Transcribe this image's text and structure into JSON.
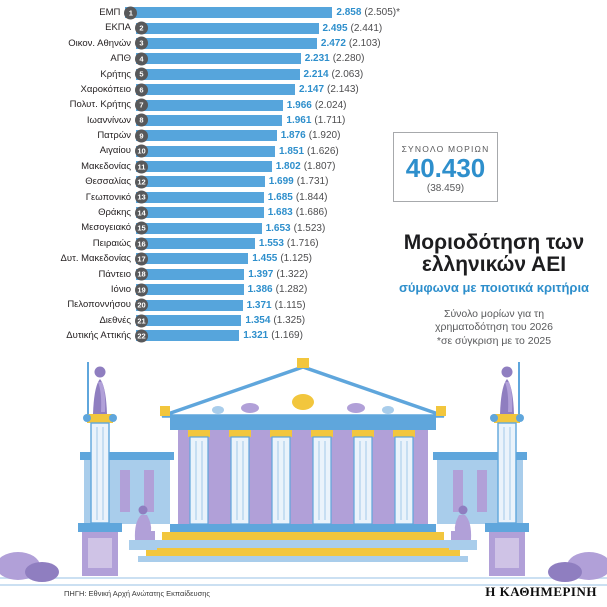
{
  "chart_data": {
    "type": "bar",
    "orientation": "horizontal",
    "title": "Μοριοδότηση των ελληνικών ΑΕΙ",
    "subtitle": "σύμφωνα με ποιοτικά κριτήρια",
    "note1": "Σύνολο μορίων για τη χρηματοδότηση του 2026",
    "note2": "*σε σύγκριση με το 2025",
    "max_value": 2858,
    "legend_position": "none",
    "grid": false,
    "total_box": {
      "title": "ΣΥΝΟΛΟ ΜΟΡΙΩΝ",
      "value": "40.430",
      "prev": "(38.459)"
    },
    "rows": [
      {
        "rank": 1,
        "label": "ΕΜΠ",
        "value": 2858,
        "value_label": "2.858",
        "prev_label": "(2.505)*"
      },
      {
        "rank": 2,
        "label": "ΕΚΠΑ",
        "value": 2495,
        "value_label": "2.495",
        "prev_label": "(2.441)"
      },
      {
        "rank": 3,
        "label": "Οικον. Αθηνών",
        "value": 2472,
        "value_label": "2.472",
        "prev_label": "(2.103)"
      },
      {
        "rank": 4,
        "label": "ΑΠΘ",
        "value": 2231,
        "value_label": "2.231",
        "prev_label": "(2.280)"
      },
      {
        "rank": 5,
        "label": "Κρήτης",
        "value": 2214,
        "value_label": "2.214",
        "prev_label": "(2.063)"
      },
      {
        "rank": 6,
        "label": "Χαροκόπειο",
        "value": 2147,
        "value_label": "2.147",
        "prev_label": "(2.143)"
      },
      {
        "rank": 7,
        "label": "Πολυτ. Κρήτης",
        "value": 1966,
        "value_label": "1.966",
        "prev_label": "(2.024)"
      },
      {
        "rank": 8,
        "label": "Ιωαννίνων",
        "value": 1961,
        "value_label": "1.961",
        "prev_label": "(1.711)"
      },
      {
        "rank": 9,
        "label": "Πατρών",
        "value": 1876,
        "value_label": "1.876",
        "prev_label": "(1.920)"
      },
      {
        "rank": 10,
        "label": "Αιγαίου",
        "value": 1851,
        "value_label": "1.851",
        "prev_label": "(1.626)"
      },
      {
        "rank": 11,
        "label": "Μακεδονίας",
        "value": 1802,
        "value_label": "1.802",
        "prev_label": "(1.807)"
      },
      {
        "rank": 12,
        "label": "Θεσσαλίας",
        "value": 1699,
        "value_label": "1.699",
        "prev_label": "(1.731)"
      },
      {
        "rank": 13,
        "label": "Γεωπονικό",
        "value": 1685,
        "value_label": "1.685",
        "prev_label": "(1.844)"
      },
      {
        "rank": 14,
        "label": "Θράκης",
        "value": 1683,
        "value_label": "1.683",
        "prev_label": "(1.686)"
      },
      {
        "rank": 15,
        "label": "Μεσογειακό",
        "value": 1653,
        "value_label": "1.653",
        "prev_label": "(1.523)"
      },
      {
        "rank": 16,
        "label": "Πειραιώς",
        "value": 1553,
        "value_label": "1.553",
        "prev_label": "(1.716)"
      },
      {
        "rank": 17,
        "label": "Δυτ. Μακεδονίας",
        "value": 1455,
        "value_label": "1.455",
        "prev_label": "(1.125)"
      },
      {
        "rank": 18,
        "label": "Πάντειο",
        "value": 1397,
        "value_label": "1.397",
        "prev_label": "(1.322)"
      },
      {
        "rank": 19,
        "label": "Ιόνιο",
        "value": 1386,
        "value_label": "1.386",
        "prev_label": "(1.282)"
      },
      {
        "rank": 20,
        "label": "Πελοποννήσου",
        "value": 1371,
        "value_label": "1.371",
        "prev_label": "(1.115)"
      },
      {
        "rank": 21,
        "label": "Διεθνές",
        "value": 1354,
        "value_label": "1.354",
        "prev_label": "(1.325)"
      },
      {
        "rank": 22,
        "label": "Δυτικής Αττικής",
        "value": 1321,
        "value_label": "1.321",
        "prev_label": "(1.169)"
      }
    ]
  },
  "illustration": "academy-of-athens-building",
  "source": "ΠΗΓΗ: Εθνική Αρχή Ανώτατης Εκπαίδευσης",
  "brand": "Η ΚΑΘΗΜΕΡΙΝΗ",
  "colors": {
    "bar": "#56A5DC",
    "value_text": "#2E8FCC",
    "rank_badge": "#58595B",
    "illustration_blue": "#5FA6DC",
    "illustration_purple": "#B1A0D8",
    "illustration_yellow": "#F2C63D"
  }
}
